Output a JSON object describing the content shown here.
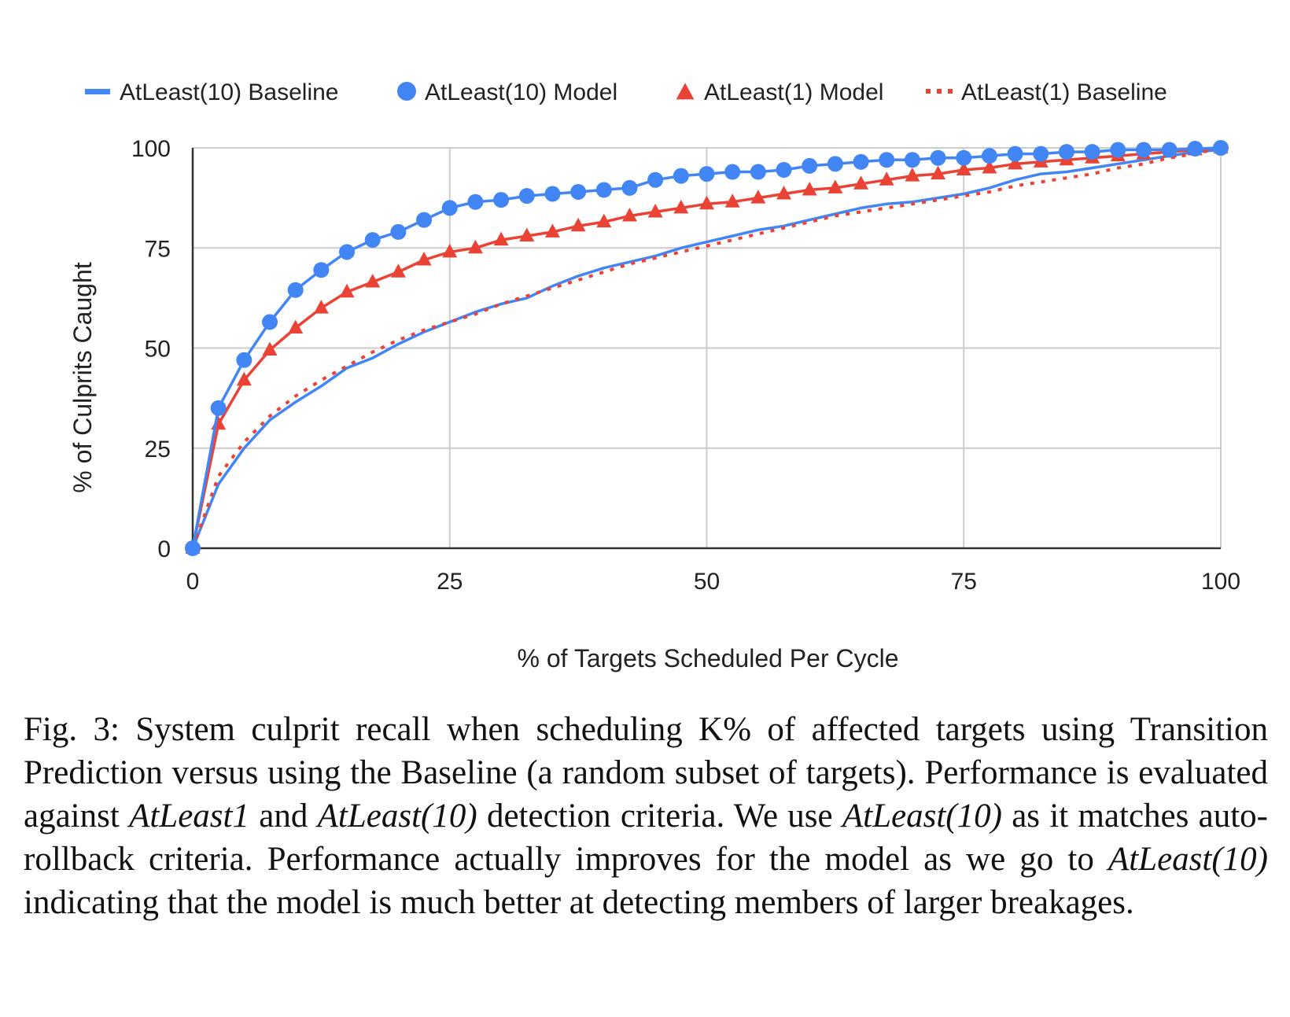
{
  "chart_data": {
    "type": "line",
    "title": "",
    "xlabel": "% of Targets Scheduled Per Cycle",
    "ylabel": "% of Culprits Caught",
    "xlim": [
      0,
      100
    ],
    "ylim": [
      0,
      100
    ],
    "xticks": [
      "0",
      "25",
      "50",
      "75",
      "100"
    ],
    "yticks": [
      "0",
      "25",
      "50",
      "75",
      "100"
    ],
    "grid": true,
    "legend_position": "top",
    "colors": {
      "blue": "#4285F4",
      "red": "#EA4335",
      "grid": "#cccccc",
      "axis": "#333333"
    },
    "series": [
      {
        "name": "AtLeast(10) Baseline",
        "style": "solid-line",
        "color": "#4285F4",
        "x": [
          0,
          2.5,
          5,
          7.5,
          10,
          12.5,
          15,
          17.5,
          20,
          22.5,
          25,
          27.5,
          30,
          32.5,
          35,
          37.5,
          40,
          42.5,
          45,
          47.5,
          50,
          52.5,
          55,
          57.5,
          60,
          62.5,
          65,
          67.5,
          70,
          72.5,
          75,
          77.5,
          80,
          82.5,
          85,
          87.5,
          90,
          92.5,
          95,
          97.5,
          100
        ],
        "y": [
          0,
          16,
          25,
          32,
          36.5,
          40.5,
          45,
          47.5,
          51,
          54,
          56.5,
          59,
          61,
          62.5,
          65.5,
          68,
          70,
          71.5,
          73,
          75,
          76.5,
          78,
          79.5,
          80.5,
          82,
          83.5,
          85,
          86,
          86.5,
          87.5,
          88.5,
          90,
          92,
          93.5,
          94,
          95,
          96,
          97,
          98,
          99,
          99.5
        ]
      },
      {
        "name": "AtLeast(10) Model",
        "style": "line-circle-markers",
        "color": "#4285F4",
        "x": [
          0,
          2.5,
          5,
          7.5,
          10,
          12.5,
          15,
          17.5,
          20,
          22.5,
          25,
          27.5,
          30,
          32.5,
          35,
          37.5,
          40,
          42.5,
          45,
          47.5,
          50,
          52.5,
          55,
          57.5,
          60,
          62.5,
          65,
          67.5,
          70,
          72.5,
          75,
          77.5,
          80,
          82.5,
          85,
          87.5,
          90,
          92.5,
          95,
          97.5,
          100
        ],
        "y": [
          0,
          35,
          47,
          56.5,
          64.5,
          69.5,
          74,
          77,
          79,
          82,
          85,
          86.5,
          87,
          88,
          88.5,
          89,
          89.5,
          90,
          92,
          93,
          93.5,
          94,
          94,
          94.5,
          95.5,
          96,
          96.5,
          97,
          97,
          97.5,
          97.5,
          98,
          98.5,
          98.5,
          99,
          99,
          99.5,
          99.5,
          99.5,
          99.8,
          100
        ]
      },
      {
        "name": "AtLeast(1) Model",
        "style": "line-triangle-markers",
        "color": "#EA4335",
        "x": [
          0,
          2.5,
          5,
          7.5,
          10,
          12.5,
          15,
          17.5,
          20,
          22.5,
          25,
          27.5,
          30,
          32.5,
          35,
          37.5,
          40,
          42.5,
          45,
          47.5,
          50,
          52.5,
          55,
          57.5,
          60,
          62.5,
          65,
          67.5,
          70,
          72.5,
          75,
          77.5,
          80,
          82.5,
          85,
          87.5,
          90,
          92.5,
          95,
          97.5,
          100
        ],
        "y": [
          0,
          31,
          42,
          49.5,
          55,
          60,
          64,
          66.5,
          69,
          72,
          74,
          75,
          77,
          78,
          79,
          80.5,
          81.5,
          83,
          84,
          85,
          86,
          86.5,
          87.5,
          88.5,
          89.5,
          90,
          91,
          92,
          93,
          93.5,
          94.5,
          95,
          96,
          96.5,
          97,
          97.5,
          98,
          98.5,
          99,
          99.5,
          100
        ]
      },
      {
        "name": "AtLeast(1) Baseline",
        "style": "dotted-line",
        "color": "#EA4335",
        "x": [
          0,
          2.5,
          5,
          7.5,
          10,
          12.5,
          15,
          17.5,
          20,
          22.5,
          25,
          27.5,
          30,
          32.5,
          35,
          37.5,
          40,
          42.5,
          45,
          47.5,
          50,
          52.5,
          55,
          57.5,
          60,
          62.5,
          65,
          67.5,
          70,
          72.5,
          75,
          77.5,
          80,
          82.5,
          85,
          87.5,
          90,
          92.5,
          95,
          97.5,
          100
        ],
        "y": [
          0,
          18,
          26.5,
          33,
          38,
          42,
          45.5,
          49,
          52,
          54.5,
          56.5,
          58.5,
          61,
          63,
          65,
          67,
          69,
          71,
          72.5,
          74,
          75.5,
          77,
          78.5,
          80,
          81.5,
          83,
          84,
          85,
          86,
          87,
          88,
          89,
          90.5,
          91.5,
          92.5,
          93.5,
          95,
          96,
          97.5,
          98.5,
          100
        ]
      }
    ]
  },
  "caption": {
    "p1": "Fig. 3: System culprit recall when scheduling K% of affected targets using Transition Prediction versus using the Baseline (a random subset of targets). Performance is evaluated against ",
    "em1": "AtLeast1",
    "p2": " and ",
    "em2": "AtLeast(10)",
    "p3": " detection criteria. We use ",
    "em3": "AtLeast(10)",
    "p4": " as it matches auto-rollback criteria. Performance actually improves for the model as we go to ",
    "em4": "AtLeast(10)",
    "p5": " indicating that the model is much better at detecting members of larger breakages."
  }
}
